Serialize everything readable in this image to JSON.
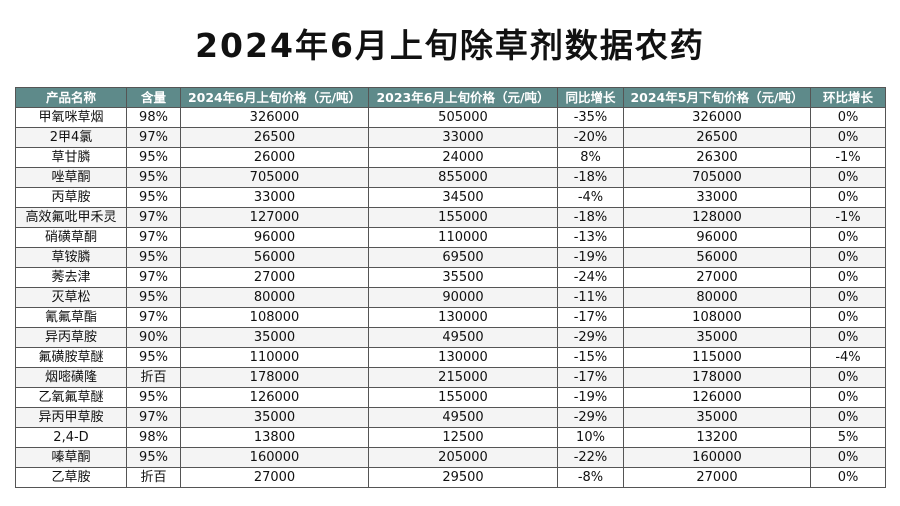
{
  "title": "2024年6月上旬除草剂数据农药",
  "headers": [
    "产品名称",
    "含量",
    "2024年6月上旬价格（元/吨）",
    "2023年6月上旬价格（元/吨）",
    "同比增长",
    "2024年5月下旬价格（元/吨）",
    "环比增长"
  ],
  "rows": [
    [
      "甲氧咪草烟",
      "98%",
      "326000",
      "505000",
      "-35%",
      "326000",
      "0%"
    ],
    [
      "2甲4氯",
      "97%",
      "26500",
      "33000",
      "-20%",
      "26500",
      "0%"
    ],
    [
      "草甘膦",
      "95%",
      "26000",
      "24000",
      "8%",
      "26300",
      "-1%"
    ],
    [
      "唑草酮",
      "95%",
      "705000",
      "855000",
      "-18%",
      "705000",
      "0%"
    ],
    [
      "丙草胺",
      "95%",
      "33000",
      "34500",
      "-4%",
      "33000",
      "0%"
    ],
    [
      "高效氟吡甲禾灵",
      "97%",
      "127000",
      "155000",
      "-18%",
      "128000",
      "-1%"
    ],
    [
      "硝磺草酮",
      "97%",
      "96000",
      "110000",
      "-13%",
      "96000",
      "0%"
    ],
    [
      "草铵膦",
      "95%",
      "56000",
      "69500",
      "-19%",
      "56000",
      "0%"
    ],
    [
      "莠去津",
      "97%",
      "27000",
      "35500",
      "-24%",
      "27000",
      "0%"
    ],
    [
      "灭草松",
      "95%",
      "80000",
      "90000",
      "-11%",
      "80000",
      "0%"
    ],
    [
      "氰氟草酯",
      "97%",
      "108000",
      "130000",
      "-17%",
      "108000",
      "0%"
    ],
    [
      "异丙草胺",
      "90%",
      "35000",
      "49500",
      "-29%",
      "35000",
      "0%"
    ],
    [
      "氟磺胺草醚",
      "95%",
      "110000",
      "130000",
      "-15%",
      "115000",
      "-4%"
    ],
    [
      "烟嘧磺隆",
      "折百",
      "178000",
      "215000",
      "-17%",
      "178000",
      "0%"
    ],
    [
      "乙氧氟草醚",
      "95%",
      "126000",
      "155000",
      "-19%",
      "126000",
      "0%"
    ],
    [
      "异丙甲草胺",
      "97%",
      "35000",
      "49500",
      "-29%",
      "35000",
      "0%"
    ],
    [
      "2,4-D",
      "98%",
      "13800",
      "12500",
      "10%",
      "13200",
      "5%"
    ],
    [
      "嗪草酮",
      "95%",
      "160000",
      "205000",
      "-22%",
      "160000",
      "0%"
    ],
    [
      "乙草胺",
      "折百",
      "27000",
      "29500",
      "-8%",
      "27000",
      "0%"
    ]
  ]
}
